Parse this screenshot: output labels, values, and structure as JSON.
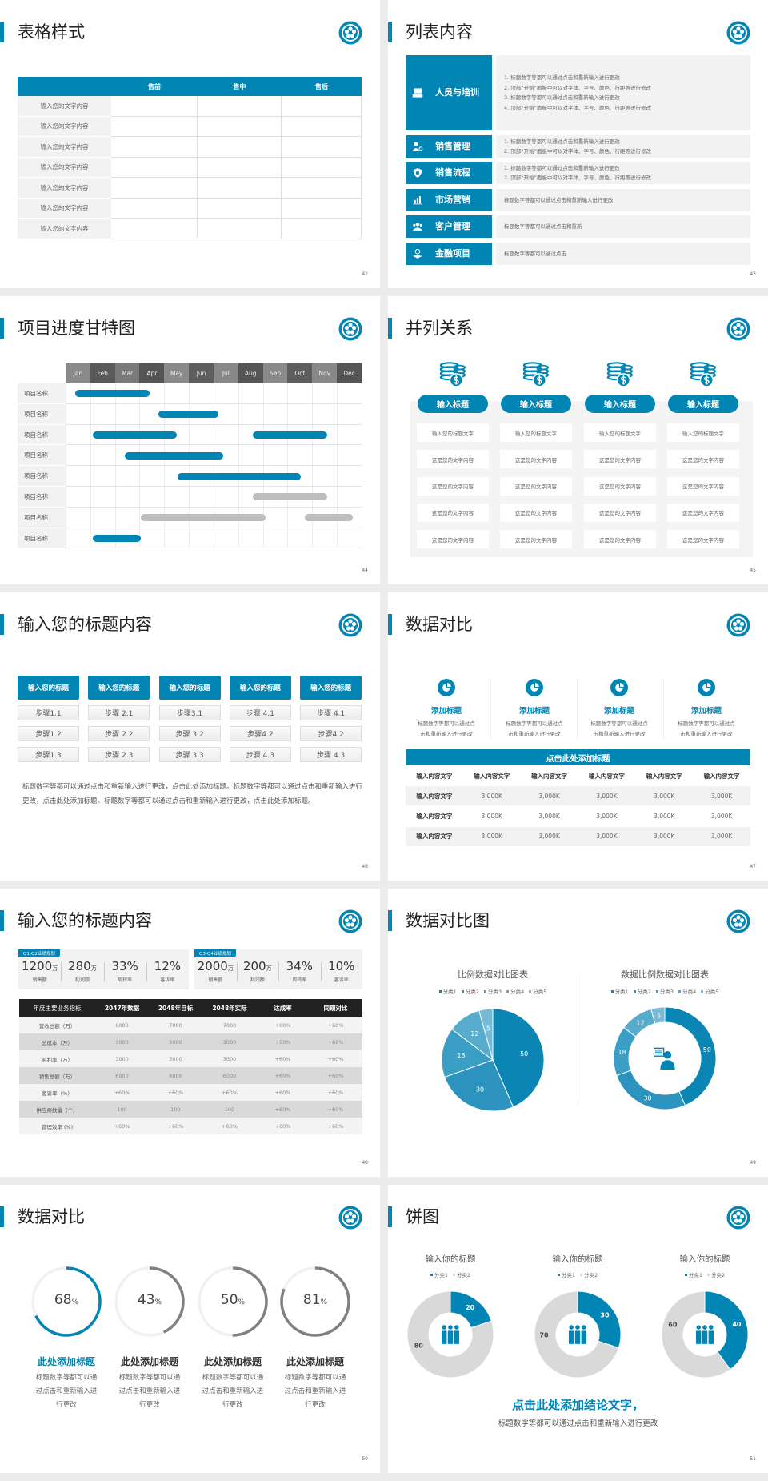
{
  "colors": {
    "accent": "#0085b4",
    "gray_bar": "#bdbdbd",
    "panel": "#f2f2f2",
    "dark_header": "#222222"
  },
  "slides": [
    {
      "type": "table",
      "title": "表格样式",
      "page": "42",
      "headers": [
        "",
        "售前",
        "售中",
        "售后"
      ],
      "rows": [
        "输入您的文字内容",
        "输入您的文字内容",
        "输入您的文字内容",
        "输入您的文字内容",
        "输入您的文字内容",
        "输入您的文字内容",
        "输入您的文字内容"
      ]
    },
    {
      "type": "list",
      "title": "列表内容",
      "page": "43",
      "items": [
        {
          "label": "人员与培训",
          "icon": "training-icon",
          "lines": [
            "1.  标题数字等都可以通过点击和重新输入进行更改",
            "2.  顶部“开始”面板中可以对字体、字号、颜色、行距等进行修改",
            "3.  标题数字等都可以通过点击和重新输入进行更改",
            "4.  顶部“开始”面板中可以对字体、字号、颜色、行距等进行修改"
          ]
        },
        {
          "label": "销售管理",
          "icon": "user-gear-icon",
          "lines": [
            "1.  标题数字等都可以通过点击和重新输入进行更改",
            "2.  顶部“开始”面板中可以对字体、字号、颜色、行距等进行修改"
          ]
        },
        {
          "label": "销售流程",
          "icon": "shield-icon",
          "lines": [
            "1.  标题数字等都可以通过点击和重新输入进行更改",
            "2.  顶部“开始”面板中可以对字体、字号、颜色、行距等进行修改"
          ]
        },
        {
          "label": "市场营销",
          "icon": "bar-chart-icon",
          "lines": [
            "标题数字等都可以通过点击和重新输入进行更改"
          ]
        },
        {
          "label": "客户管理",
          "icon": "users-icon",
          "lines": [
            "标题数字等都可以通过点击和重新"
          ]
        },
        {
          "label": "金融项目",
          "icon": "finance-hand-icon",
          "lines": [
            "标题数字等都可以通过点击"
          ]
        }
      ]
    },
    {
      "type": "gantt",
      "title": "项目进度甘特图",
      "page": "44",
      "months": [
        "Jan",
        "Feb",
        "Mar",
        "Apr",
        "May",
        "Jun",
        "Jul",
        "Aug",
        "Sep",
        "Oct",
        "Nov",
        "Dec"
      ],
      "tasks": [
        {
          "name": "项目名称",
          "bars": [
            {
              "start": 0.4,
              "end": 3.4,
              "status": "active"
            }
          ]
        },
        {
          "name": "项目名称",
          "bars": [
            {
              "start": 3.75,
              "end": 6.2,
              "status": "active"
            }
          ]
        },
        {
          "name": "项目名称",
          "bars": [
            {
              "start": 1.1,
              "end": 4.5,
              "status": "active"
            },
            {
              "start": 7.6,
              "end": 10.6,
              "status": "active"
            }
          ]
        },
        {
          "name": "项目名称",
          "bars": [
            {
              "start": 2.4,
              "end": 6.4,
              "status": "active"
            }
          ]
        },
        {
          "name": "项目名称",
          "bars": [
            {
              "start": 4.55,
              "end": 9.55,
              "status": "active"
            }
          ]
        },
        {
          "name": "项目名称",
          "bars": [
            {
              "start": 7.6,
              "end": 10.6,
              "status": "planned"
            }
          ]
        },
        {
          "name": "项目名称",
          "bars": [
            {
              "start": 3.05,
              "end": 8.1,
              "status": "planned"
            },
            {
              "start": 9.7,
              "end": 11.65,
              "status": "planned"
            }
          ]
        },
        {
          "name": "项目名称",
          "bars": [
            {
              "start": 1.1,
              "end": 3.05,
              "status": "active"
            }
          ]
        }
      ]
    },
    {
      "type": "parallel",
      "title": "并列关系",
      "page": "45",
      "columns": [
        {
          "heading": "输入标题",
          "cells": [
            "输入您的标题文字",
            "这是您的文字内容",
            "这是您的文字内容",
            "这是您的文字内容",
            "这是您的文字内容"
          ]
        },
        {
          "heading": "输入标题",
          "cells": [
            "输入您的标题文字",
            "这是您的文字内容",
            "这是您的文字内容",
            "这是您的文字内容",
            "这是您的文字内容"
          ]
        },
        {
          "heading": "输入标题",
          "cells": [
            "输入您的标题文字",
            "这是您的文字内容",
            "这是您的文字内容",
            "这是您的文字内容",
            "这是您的文字内容"
          ]
        },
        {
          "heading": "输入标题",
          "cells": [
            "输入您的标题文字",
            "这是您的文字内容",
            "这是您的文字内容",
            "这是您的文字内容",
            "这是您的文字内容"
          ]
        }
      ]
    },
    {
      "type": "steps",
      "title": "输入您的标题内容",
      "page": "46",
      "columns": [
        {
          "heading": "输入您的标题",
          "steps": [
            "步骤1.1",
            "步骤1.2",
            "步骤1.3"
          ]
        },
        {
          "heading": "输入您的标题",
          "steps": [
            "步骤 2.1",
            "步骤 2.2",
            "步骤 2.3"
          ]
        },
        {
          "heading": "输入您的标题",
          "steps": [
            "步骤3.1",
            "步骤 3.2",
            "步骤 3.3"
          ]
        },
        {
          "heading": "输入您的标题",
          "steps": [
            "步骤 4.1",
            "步骤4.2",
            "步骤 4.3"
          ]
        },
        {
          "heading": "输入您的标题",
          "steps": [
            "步骤 4.1",
            "步骤4.2",
            "步骤 4.3"
          ]
        }
      ],
      "paragraph": "标题数字等都可以通过点击和重新输入进行更改，点击此处添加标题。标题数字等都可以通过点击和重新输入进行更改，点击此处添加标题。标题数字等都可以通过点击和重新输入进行更改，点击此处添加标题。"
    },
    {
      "type": "compare",
      "title": "数据对比",
      "page": "47",
      "features": [
        {
          "heading": "添加标题",
          "lines": [
            "标题数字等都可以通过点",
            "击和重新输入进行更改"
          ]
        },
        {
          "heading": "添加标题",
          "lines": [
            "标题数字等都可以通过点",
            "击和重新输入进行更改"
          ]
        },
        {
          "heading": "添加标题",
          "lines": [
            "标题数字等都可以通过点",
            "击和重新输入进行更改"
          ]
        },
        {
          "heading": "添加标题",
          "lines": [
            "标题数字等都可以通过点",
            "击和重新输入进行更改"
          ]
        }
      ],
      "table_title": "点击此处添加标题",
      "headers": [
        "输入内容文字",
        "输入内容文字",
        "输入内容文字",
        "输入内容文字",
        "输入内容文字",
        "输入内容文字"
      ],
      "rows": [
        [
          "输入内容文字",
          "3,000K",
          "3,000K",
          "3,000K",
          "3,000K",
          "3,000K"
        ],
        [
          "输入内容文字",
          "3,000K",
          "3,000K",
          "3,000K",
          "3,000K",
          "3,000K"
        ],
        [
          "输入内容文字",
          "3,000K",
          "3,000K",
          "3,000K",
          "3,000K",
          "3,000K"
        ]
      ]
    },
    {
      "type": "kpi",
      "title": "输入您的标题内容",
      "page": "48",
      "panels": [
        {
          "tag": "Q1-Q2业绩规划",
          "metrics": [
            {
              "value": "1200",
              "unit": "万",
              "label": "销售额"
            },
            {
              "value": "280",
              "unit": "万",
              "label": "利润额"
            },
            {
              "value": "33%",
              "unit": "",
              "label": "周转率"
            },
            {
              "value": "12%",
              "unit": "",
              "label": "客诉率"
            }
          ]
        },
        {
          "tag": "Q3-Q4业绩规划",
          "metrics": [
            {
              "value": "2000",
              "unit": "万",
              "label": "销售额"
            },
            {
              "value": "200",
              "unit": "万",
              "label": "利润额"
            },
            {
              "value": "34%",
              "unit": "",
              "label": "周转率"
            },
            {
              "value": "10%",
              "unit": "",
              "label": "客诉率"
            }
          ]
        }
      ],
      "headers": [
        "年度主要业务指标",
        "2047年数据",
        "2048年目标",
        "2048年实际",
        "达成率",
        "同期对比"
      ],
      "rows": [
        [
          "营收总额（万）",
          "6000",
          "7000",
          "7000",
          "+60%",
          "+60%"
        ],
        [
          "总成本（万）",
          "3000",
          "3000",
          "3000",
          "+60%",
          "+60%"
        ],
        [
          "毛利率（万）",
          "3000",
          "3000",
          "3000",
          "+60%",
          "+60%"
        ],
        [
          "销售总额（万）",
          "6000",
          "6000",
          "6000",
          "+60%",
          "+60%"
        ],
        [
          "客诉率（%）",
          "+60%",
          "+60%",
          "+60%",
          "+60%",
          "+60%"
        ],
        [
          "供应商数量（个）",
          "100",
          "100",
          "100",
          "+60%",
          "+60%"
        ],
        [
          "管理效率 (%)",
          "+60%",
          "+60%",
          "+60%",
          "+60%",
          "+60%"
        ]
      ]
    },
    {
      "type": "pies",
      "title": "数据对比图",
      "page": "49"
    },
    {
      "type": "rings",
      "title": "数据对比",
      "page": "50",
      "items": [
        {
          "value": 68,
          "label": "68",
          "unit": "%",
          "heading": "此处添加标题",
          "lines": [
            "标题数字等都可以通",
            "过点击和重新输入进",
            "行更改"
          ],
          "highlight": true
        },
        {
          "value": 43,
          "label": "43",
          "unit": "%",
          "heading": "此处添加标题",
          "lines": [
            "标题数字等都可以通",
            "过点击和重新输入进",
            "行更改"
          ],
          "highlight": false
        },
        {
          "value": 50,
          "label": "50",
          "unit": "%",
          "heading": "此处添加标题",
          "lines": [
            "标题数字等都可以通",
            "过点击和重新输入进",
            "行更改"
          ],
          "highlight": false
        },
        {
          "value": 81,
          "label": "81",
          "unit": "%",
          "heading": "此处添加标题",
          "lines": [
            "标题数字等都可以通",
            "过点击和重新输入进",
            "行更改"
          ],
          "highlight": false
        }
      ]
    },
    {
      "type": "donuts",
      "title": "饼图",
      "page": "51",
      "conclusion": "点击此处添加结论文字，",
      "subtext": "标题数字等都可以通过点击和重新输入进行更改"
    }
  ],
  "chart_data": [
    {
      "type": "pie",
      "title": "比例数据对比图表",
      "legend": "top",
      "categories": [
        "分类1",
        "分类2",
        "分类3",
        "分类4",
        "分类5"
      ],
      "values": [
        50,
        30,
        18,
        12,
        5
      ],
      "colors": [
        "#0b86b4",
        "#2b93bd",
        "#3b9ec4",
        "#57abcc",
        "#76bad6"
      ]
    },
    {
      "type": "pie",
      "variant": "donut",
      "title": "数据比例数据对比图表",
      "legend": "top",
      "categories": [
        "分类1",
        "分类2",
        "分类3",
        "分类4",
        "分类5"
      ],
      "values": [
        50,
        30,
        18,
        12,
        5
      ],
      "colors": [
        "#0b86b4",
        "#2b93bd",
        "#3b9ec4",
        "#57abcc",
        "#76bad6"
      ],
      "center_icon": "customer-service-icon"
    },
    {
      "type": "pie",
      "variant": "donut",
      "title": "输入你的标题",
      "legend": "top",
      "categories": [
        "分类1",
        "分类2"
      ],
      "values": [
        20,
        80
      ],
      "colors": [
        "#0085b4",
        "#d9d9d9"
      ],
      "center_icon": "team-icon"
    },
    {
      "type": "pie",
      "variant": "donut",
      "title": "输入你的标题",
      "legend": "top",
      "categories": [
        "分类1",
        "分类2"
      ],
      "values": [
        30,
        70
      ],
      "colors": [
        "#0085b4",
        "#d9d9d9"
      ],
      "center_icon": "team-icon"
    },
    {
      "type": "pie",
      "variant": "donut",
      "title": "输入你的标题",
      "legend": "top",
      "categories": [
        "分类1",
        "分类2"
      ],
      "values": [
        40,
        60
      ],
      "colors": [
        "#0085b4",
        "#d9d9d9"
      ],
      "center_icon": "team-icon"
    }
  ]
}
